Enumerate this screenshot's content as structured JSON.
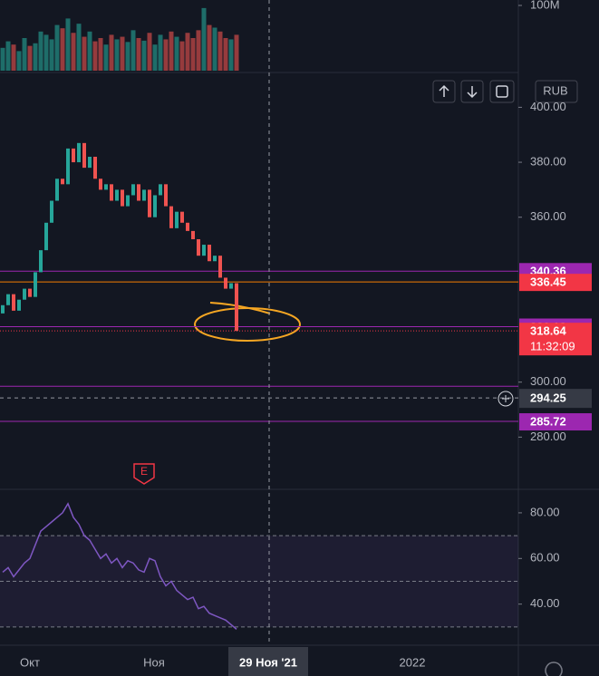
{
  "chart_data": {
    "type": "candlestick",
    "currency": "RUB",
    "event_marker": "E",
    "open": [
      325,
      328,
      332,
      326,
      330,
      334,
      331,
      340,
      348,
      358,
      366,
      374,
      372,
      385,
      380,
      387,
      378,
      382,
      374,
      370,
      372,
      366,
      370,
      364,
      368,
      372,
      366,
      370,
      360,
      368,
      372,
      364,
      356,
      362,
      358,
      355,
      352,
      346,
      350,
      344,
      346,
      338,
      334,
      336
    ],
    "close": [
      328,
      332,
      326,
      330,
      334,
      331,
      340,
      348,
      358,
      366,
      374,
      372,
      385,
      380,
      387,
      378,
      382,
      374,
      370,
      372,
      366,
      370,
      364,
      368,
      372,
      366,
      370,
      360,
      368,
      372,
      364,
      356,
      362,
      358,
      355,
      352,
      346,
      350,
      344,
      346,
      338,
      334,
      336,
      318.64
    ],
    "up_color": "#26a69a",
    "down_color": "#ef5350",
    "ylim": [
      261,
      412
    ],
    "yticks": [
      {
        "value": 400,
        "label": "400.00"
      },
      {
        "value": 380,
        "label": "380.00"
      },
      {
        "value": 360,
        "label": "360.00"
      },
      {
        "value": 300,
        "label": "300.00"
      },
      {
        "value": 280,
        "label": "280.00"
      }
    ],
    "levels": [
      {
        "value": 340.36,
        "color": "#9c27b0",
        "tag": true
      },
      {
        "value": 336.45,
        "color": "#f57c00",
        "tag_color": "#f23645",
        "tag": true
      },
      {
        "value": 320.18,
        "color": "#9c27b0",
        "tag": true
      },
      {
        "value": 318.64,
        "color": "#f23645",
        "tag": true,
        "dotted": true,
        "countdown": "11:32:09"
      },
      {
        "value": 298.5,
        "color": "#9c27b0"
      },
      {
        "value": 285.72,
        "color": "#9c27b0",
        "tag": true
      }
    ],
    "crosshair": {
      "price": 294.25,
      "date": "29 Ноя '21"
    },
    "volume": {
      "values": [
        35,
        45,
        40,
        30,
        50,
        38,
        42,
        60,
        55,
        48,
        70,
        65,
        80,
        58,
        72,
        52,
        60,
        45,
        50,
        40,
        55,
        48,
        52,
        44,
        62,
        50,
        46,
        58,
        40,
        55,
        48,
        60,
        52,
        45,
        58,
        50,
        62,
        96,
        70,
        66,
        60,
        50,
        48,
        55
      ],
      "ylim": [
        0,
        100
      ],
      "yticks": [
        {
          "value": 100,
          "label": "100M"
        }
      ]
    },
    "rsi": {
      "values": [
        54,
        56,
        52,
        55,
        58,
        60,
        66,
        72,
        74,
        76,
        78,
        80,
        84,
        78,
        75,
        70,
        68,
        64,
        60,
        62,
        58,
        60,
        56,
        59,
        58,
        55,
        54,
        60,
        59,
        52,
        48,
        50,
        46,
        44,
        42,
        43,
        38,
        39,
        36,
        35,
        34,
        33,
        31,
        29
      ],
      "color": "#7e57c2",
      "ylim": [
        22,
        89.5
      ],
      "yticks": [
        {
          "value": 80,
          "label": "80.00"
        },
        {
          "value": 60,
          "label": "60.00"
        },
        {
          "value": 40,
          "label": "40.00"
        }
      ],
      "bands": [
        70,
        50,
        30
      ]
    },
    "time_labels": [
      "Окт",
      "Ноя",
      "2022"
    ]
  }
}
